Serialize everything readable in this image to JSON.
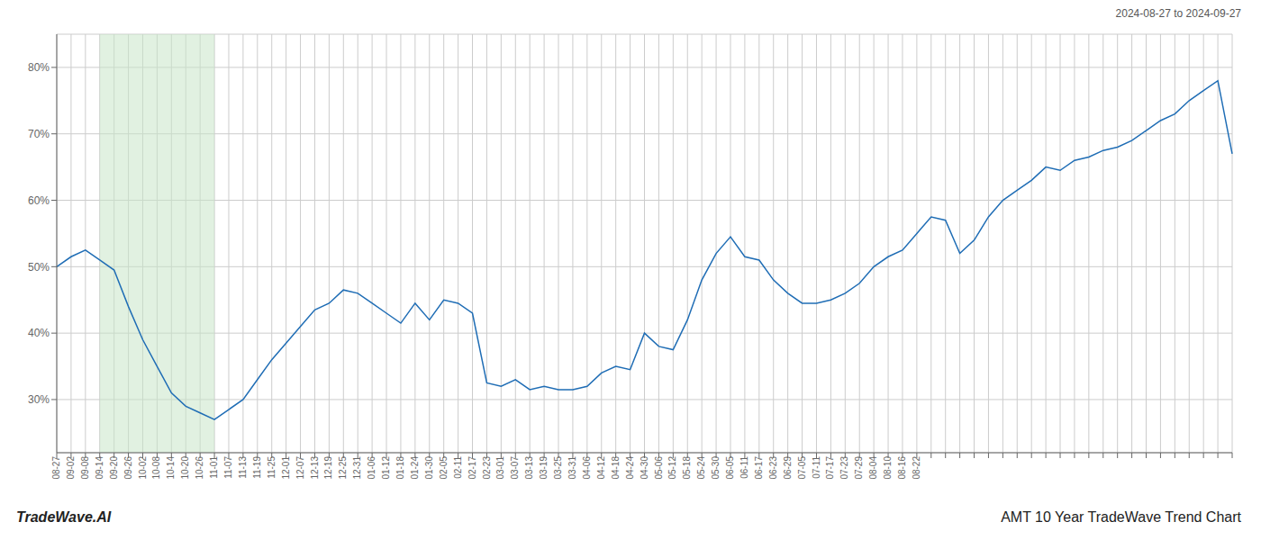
{
  "chart_data": {
    "type": "line",
    "title": "AMT 10 Year TradeWave Trend Chart",
    "subtitle": "2024-08-27 to 2024-09-27",
    "annotations": [
      "TradeWave.AI"
    ],
    "categories": [
      "08-27",
      "09-02",
      "09-08",
      "09-14",
      "09-20",
      "09-26",
      "10-02",
      "10-08",
      "10-14",
      "10-20",
      "10-26",
      "11-01",
      "11-07",
      "11-13",
      "11-19",
      "11-25",
      "12-01",
      "12-07",
      "12-13",
      "12-19",
      "12-25",
      "12-31",
      "01-06",
      "01-12",
      "01-18",
      "01-24",
      "01-30",
      "02-05",
      "02-11",
      "02-17",
      "02-23",
      "03-01",
      "03-07",
      "03-13",
      "03-19",
      "03-25",
      "03-31",
      "04-06",
      "04-12",
      "04-18",
      "04-24",
      "04-30",
      "05-06",
      "05-12",
      "05-18",
      "05-24",
      "05-30",
      "06-05",
      "06-11",
      "06-17",
      "06-23",
      "06-29",
      "07-05",
      "07-11",
      "07-17",
      "07-23",
      "07-29",
      "08-04",
      "08-10",
      "08-16",
      "08-22",
      null,
      null,
      null,
      null,
      null,
      null,
      null,
      null,
      null,
      null,
      null,
      null,
      null,
      null,
      null,
      null,
      null,
      null,
      null,
      null,
      null,
      null
    ],
    "values": [
      50.0,
      51.5,
      52.5,
      51.0,
      49.5,
      44.0,
      39.0,
      35.0,
      31.0,
      29.0,
      28.0,
      27.0,
      28.5,
      30.0,
      33.0,
      36.0,
      38.5,
      41.0,
      43.5,
      44.5,
      46.5,
      46.0,
      44.5,
      43.0,
      41.5,
      44.5,
      42.0,
      45.0,
      44.5,
      43.0,
      32.5,
      32.0,
      33.0,
      31.5,
      32.0,
      31.5,
      31.5,
      32.0,
      34.0,
      35.0,
      34.5,
      40.0,
      38.0,
      37.5,
      42.0,
      48.0,
      52.0,
      54.5,
      51.5,
      51.0,
      48.0,
      46.0,
      44.5,
      44.5,
      45.0,
      46.0,
      47.5,
      50.0,
      51.5,
      52.5,
      55.0,
      57.5,
      57.0,
      52.0,
      54.0,
      57.5,
      60.0,
      61.5,
      63.0,
      65.0,
      64.5,
      66.0,
      66.5,
      67.5,
      68.0,
      69.0,
      70.5,
      72.0,
      73.0,
      75.0,
      76.5,
      78.0,
      67.0
    ],
    "color": "#1f6db5",
    "band": {
      "from": "09-14",
      "to": "11-01",
      "color": "#c8e6c8"
    },
    "ylim": [
      22,
      85
    ],
    "yticks": [
      {
        "value": 30,
        "label": "30%"
      },
      {
        "value": 40,
        "label": "40%"
      },
      {
        "value": 50,
        "label": "50%"
      },
      {
        "value": 60,
        "label": "60%"
      },
      {
        "value": 70,
        "label": "70%"
      },
      {
        "value": 80,
        "label": "80%"
      }
    ],
    "grid": true
  }
}
